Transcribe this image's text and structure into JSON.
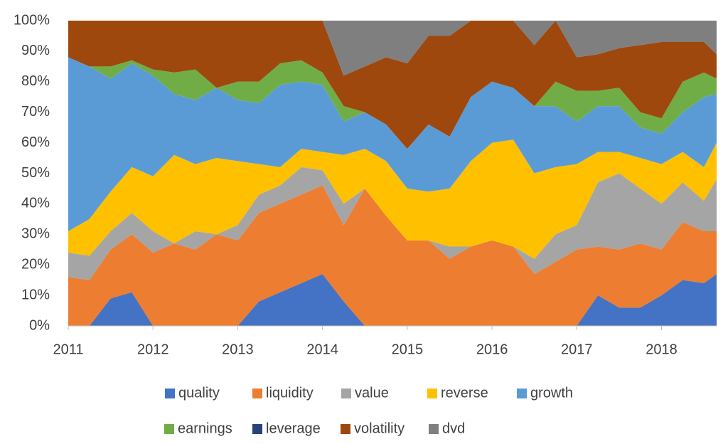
{
  "chart_data": {
    "type": "stacked_area",
    "x": [
      2011.0,
      2011.25,
      2011.5,
      2011.75,
      2012.0,
      2012.25,
      2012.5,
      2012.75,
      2013.0,
      2013.25,
      2013.5,
      2013.75,
      2014.0,
      2014.25,
      2014.5,
      2014.75,
      2015.0,
      2015.25,
      2015.5,
      2015.75,
      2016.0,
      2016.25,
      2016.5,
      2016.75,
      2017.0,
      2017.25,
      2017.5,
      2017.75,
      2018.0,
      2018.25,
      2018.5,
      2018.65
    ],
    "series": [
      {
        "name": "quality",
        "color": "#4472c4",
        "values": [
          0,
          0,
          9,
          11,
          0,
          0,
          0,
          0,
          0,
          8,
          11,
          14,
          17,
          8,
          0,
          0,
          0,
          0,
          0,
          0,
          0,
          0,
          0,
          0,
          0,
          10,
          6,
          6,
          10,
          15,
          14,
          17
        ]
      },
      {
        "name": "liquidity",
        "color": "#ed7d31",
        "values": [
          16,
          15,
          16,
          19,
          24,
          27,
          25,
          30,
          28,
          29,
          29,
          29,
          29,
          25,
          45,
          36,
          28,
          28,
          22,
          26,
          28,
          26,
          17,
          21,
          25,
          16,
          19,
          21,
          15,
          19,
          17,
          14
        ]
      },
      {
        "name": "value",
        "color": "#a5a5a5",
        "values": [
          8,
          8,
          6,
          7,
          7,
          0,
          6,
          0,
          5,
          6,
          6,
          9,
          5,
          7,
          0,
          0,
          0,
          0,
          4,
          0,
          0,
          0,
          5,
          9,
          8,
          21,
          25,
          18,
          15,
          13,
          10,
          17
        ]
      },
      {
        "name": "reverse",
        "color": "#ffc000",
        "values": [
          7,
          12,
          13,
          15,
          18,
          29,
          22,
          25,
          21,
          10,
          6,
          6,
          6,
          16,
          13,
          18,
          17,
          16,
          19,
          28,
          32,
          35,
          28,
          22,
          20,
          10,
          7,
          10,
          13,
          10,
          11,
          12
        ]
      },
      {
        "name": "growth",
        "color": "#5b9bd5",
        "values": [
          57,
          50,
          37,
          34,
          33,
          20,
          21,
          23,
          20,
          20,
          27,
          22,
          22,
          11,
          12,
          12,
          13,
          22,
          17,
          21,
          20,
          17,
          22,
          20,
          14,
          15,
          15,
          10,
          10,
          13,
          23,
          16
        ]
      },
      {
        "name": "earnings",
        "color": "#70ad47",
        "values": [
          0,
          0,
          4,
          1,
          2,
          7,
          10,
          0,
          6,
          7,
          7,
          7,
          4,
          5,
          0,
          0,
          0,
          0,
          0,
          0,
          0,
          0,
          0,
          8,
          10,
          5,
          6,
          5,
          5,
          10,
          8,
          5
        ]
      },
      {
        "name": "leverage",
        "color": "#264478",
        "values": [
          0,
          0,
          0,
          0,
          0,
          0,
          0,
          0,
          0,
          0,
          0,
          0,
          0,
          0,
          0,
          0,
          0,
          0,
          0,
          0,
          0,
          0,
          0,
          0,
          0,
          0,
          0,
          0,
          0,
          0,
          0,
          0
        ]
      },
      {
        "name": "volatility",
        "color": "#9e480e",
        "values": [
          12,
          15,
          15,
          13,
          16,
          17,
          16,
          22,
          20,
          20,
          14,
          13,
          17,
          10,
          15,
          22,
          28,
          29,
          33,
          25,
          20,
          22,
          20,
          20,
          11,
          12,
          13,
          22,
          25,
          13,
          10,
          8
        ]
      },
      {
        "name": "dvd",
        "color": "#7f7f7f",
        "values": [
          0,
          0,
          0,
          0,
          0,
          0,
          0,
          0,
          0,
          0,
          0,
          0,
          0,
          18,
          15,
          12,
          14,
          5,
          5,
          0,
          0,
          0,
          8,
          0,
          12,
          11,
          9,
          8,
          7,
          7,
          7,
          11
        ]
      }
    ],
    "xlim": [
      2011,
      2018.65
    ],
    "xticks": [
      2011,
      2012,
      2013,
      2014,
      2015,
      2016,
      2017,
      2018
    ],
    "ylim": [
      0,
      100
    ],
    "yticks": [
      {
        "value": 0,
        "label": "0%"
      },
      {
        "value": 10,
        "label": "10%"
      },
      {
        "value": 20,
        "label": "20%"
      },
      {
        "value": 30,
        "label": "30%"
      },
      {
        "value": 40,
        "label": "40%"
      },
      {
        "value": 50,
        "label": "50%"
      },
      {
        "value": 60,
        "label": "60%"
      },
      {
        "value": 70,
        "label": "70%"
      },
      {
        "value": 80,
        "label": "80%"
      },
      {
        "value": 90,
        "label": "90%"
      },
      {
        "value": 100,
        "label": "100%"
      }
    ],
    "grid": false,
    "legend": "bottom"
  }
}
